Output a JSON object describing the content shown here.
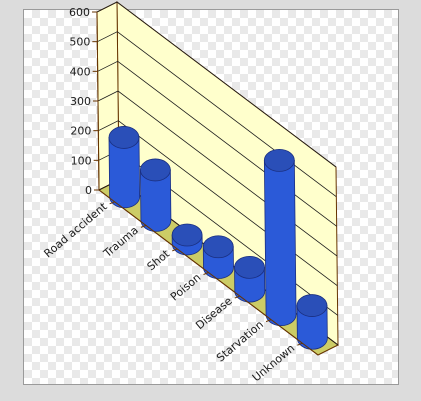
{
  "chart_data": {
    "type": "bar",
    "style": "3d-cylinder",
    "categories": [
      "Road accident",
      "Trauma",
      "Shot",
      "Poison",
      "Disease",
      "Starvation",
      "Unknown"
    ],
    "values": [
      200,
      170,
      30,
      70,
      80,
      520,
      110
    ],
    "y_ticks": [
      "0",
      "100",
      "200",
      "300",
      "400",
      "500",
      "600"
    ],
    "ylim": [
      0,
      600
    ],
    "grid": true,
    "title": "",
    "xlabel": "",
    "ylabel": ""
  },
  "colors": {
    "wall": "#ffffcc",
    "floor": "#cccc66",
    "bar_side": "#2b5ad8",
    "bar_top": "#2a4fb8",
    "axis": "#663300"
  }
}
